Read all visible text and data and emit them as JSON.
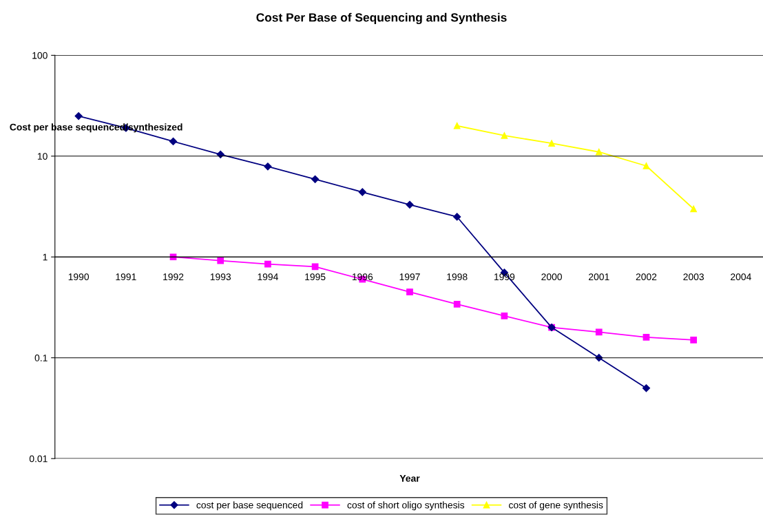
{
  "chart_data": {
    "type": "line",
    "title": "Cost Per Base of Sequencing and Synthesis",
    "xlabel": "Year",
    "ylabel": "Cost per base sequenced/synthesized",
    "categories": [
      "1990",
      "1991",
      "1992",
      "1993",
      "1994",
      "1995",
      "1996",
      "1997",
      "1998",
      "1999",
      "2000",
      "2001",
      "2002",
      "2003",
      "2004"
    ],
    "series": [
      {
        "name": "cost per base sequenced",
        "color": "#000080",
        "marker": "diamond",
        "values": [
          25,
          19,
          14,
          10.4,
          7.9,
          5.9,
          4.4,
          3.3,
          2.5,
          0.7,
          0.2,
          0.1,
          0.05,
          null,
          null
        ]
      },
      {
        "name": "cost of short oligo synthesis",
        "color": "#ff00ff",
        "marker": "square",
        "values": [
          null,
          null,
          1.0,
          0.92,
          0.85,
          0.8,
          0.6,
          0.45,
          0.34,
          0.26,
          0.2,
          0.18,
          0.16,
          0.15,
          null
        ]
      },
      {
        "name": "cost of gene synthesis",
        "color": "#ffff00",
        "marker": "triangle",
        "values": [
          null,
          null,
          null,
          null,
          null,
          null,
          null,
          null,
          20,
          16,
          13.4,
          11,
          8,
          3,
          null
        ]
      }
    ],
    "log": "y",
    "ylim": [
      0.01,
      100
    ],
    "yticks": [
      0.01,
      0.1,
      1,
      10,
      100
    ],
    "grid": "y",
    "legend": "bottom",
    "line_style": "solid"
  }
}
